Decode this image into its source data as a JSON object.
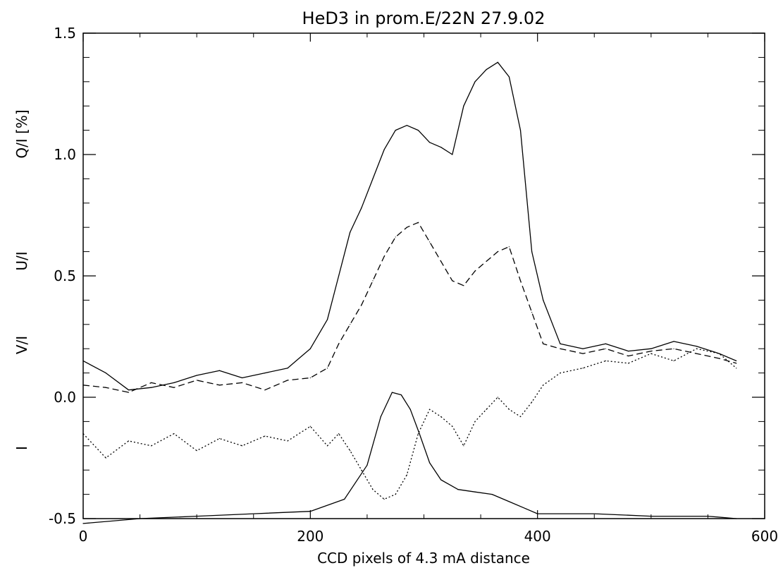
{
  "chart_data": {
    "type": "line",
    "title": "HeD3 in prom.E/22N 27.9.02",
    "xlabel": "CCD pixels of 4.3 mA distance",
    "ylabels": [
      "Q/I [%]",
      "U/I",
      "V/I",
      "I"
    ],
    "xlim": [
      0,
      600
    ],
    "ylim": [
      -0.5,
      1.5
    ],
    "x_ticks": [
      0,
      200,
      400,
      600
    ],
    "x_tick_labels": [
      "0",
      "200",
      "400",
      "600"
    ],
    "y_ticks": [
      -0.5,
      0.0,
      0.5,
      1.0,
      1.5
    ],
    "y_tick_labels": [
      "-0.5",
      "0.0",
      "0.5",
      "1.0",
      "1.5"
    ],
    "grid": false,
    "series": [
      {
        "style": "solid",
        "x": [
          0,
          20,
          40,
          60,
          80,
          100,
          120,
          140,
          160,
          180,
          200,
          215,
          225,
          235,
          245,
          255,
          265,
          275,
          285,
          295,
          305,
          315,
          325,
          335,
          345,
          355,
          365,
          375,
          385,
          395,
          405,
          420,
          440,
          460,
          480,
          500,
          520,
          540,
          560,
          575
        ],
        "values": [
          0.15,
          0.1,
          0.03,
          0.04,
          0.06,
          0.09,
          0.11,
          0.08,
          0.1,
          0.12,
          0.2,
          0.32,
          0.5,
          0.68,
          0.78,
          0.9,
          1.02,
          1.1,
          1.12,
          1.1,
          1.05,
          1.03,
          1.0,
          1.2,
          1.3,
          1.35,
          1.38,
          1.32,
          1.1,
          0.6,
          0.4,
          0.22,
          0.2,
          0.22,
          0.19,
          0.2,
          0.23,
          0.21,
          0.18,
          0.15
        ]
      },
      {
        "style": "dashed",
        "x": [
          0,
          20,
          40,
          60,
          80,
          100,
          120,
          140,
          160,
          180,
          200,
          215,
          225,
          235,
          245,
          255,
          265,
          275,
          285,
          295,
          305,
          315,
          325,
          335,
          345,
          355,
          365,
          375,
          385,
          395,
          405,
          420,
          440,
          460,
          480,
          500,
          520,
          540,
          560,
          575
        ],
        "values": [
          0.05,
          0.04,
          0.02,
          0.06,
          0.04,
          0.07,
          0.05,
          0.06,
          0.03,
          0.07,
          0.08,
          0.12,
          0.22,
          0.3,
          0.38,
          0.48,
          0.58,
          0.66,
          0.7,
          0.72,
          0.64,
          0.56,
          0.48,
          0.46,
          0.52,
          0.56,
          0.6,
          0.62,
          0.48,
          0.35,
          0.22,
          0.2,
          0.18,
          0.2,
          0.17,
          0.19,
          0.2,
          0.18,
          0.16,
          0.14
        ]
      },
      {
        "style": "dotted",
        "x": [
          0,
          20,
          40,
          60,
          80,
          100,
          120,
          140,
          160,
          180,
          200,
          215,
          225,
          235,
          245,
          255,
          265,
          275,
          285,
          295,
          305,
          315,
          325,
          335,
          345,
          355,
          365,
          375,
          385,
          395,
          405,
          420,
          440,
          460,
          480,
          500,
          520,
          540,
          560,
          575
        ],
        "values": [
          -0.15,
          -0.25,
          -0.18,
          -0.2,
          -0.15,
          -0.22,
          -0.17,
          -0.2,
          -0.16,
          -0.18,
          -0.12,
          -0.2,
          -0.15,
          -0.22,
          -0.3,
          -0.38,
          -0.42,
          -0.4,
          -0.32,
          -0.15,
          -0.05,
          -0.08,
          -0.12,
          -0.2,
          -0.1,
          -0.05,
          0.0,
          -0.05,
          -0.08,
          -0.02,
          0.05,
          0.1,
          0.12,
          0.15,
          0.14,
          0.18,
          0.15,
          0.2,
          0.18,
          0.12
        ]
      },
      {
        "style": "solid",
        "x": [
          0,
          50,
          100,
          150,
          200,
          230,
          250,
          262,
          272,
          280,
          288,
          296,
          305,
          315,
          330,
          345,
          360,
          375,
          390,
          400,
          450,
          500,
          550,
          575
        ],
        "values": [
          -0.52,
          -0.5,
          -0.49,
          -0.48,
          -0.47,
          -0.42,
          -0.28,
          -0.08,
          0.02,
          0.01,
          -0.05,
          -0.15,
          -0.27,
          -0.34,
          -0.38,
          -0.39,
          -0.4,
          -0.43,
          -0.46,
          -0.48,
          -0.48,
          -0.49,
          -0.49,
          -0.5
        ]
      }
    ]
  }
}
